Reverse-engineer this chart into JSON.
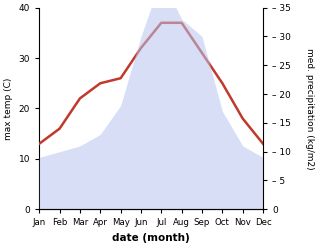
{
  "months": [
    "Jan",
    "Feb",
    "Mar",
    "Apr",
    "May",
    "Jun",
    "Jul",
    "Aug",
    "Sep",
    "Oct",
    "Nov",
    "Dec"
  ],
  "temperature": [
    13,
    16,
    22,
    25,
    26,
    32,
    37,
    37,
    31,
    25,
    18,
    13
  ],
  "precipitation": [
    9,
    10,
    11,
    13,
    18,
    30,
    40,
    33,
    30,
    17,
    11,
    9
  ],
  "temp_color": "#c0392b",
  "precip_color_fill": "#b8c4ee",
  "temp_ylim": [
    0,
    40
  ],
  "precip_ylim": [
    0,
    35
  ],
  "temp_yticks": [
    0,
    10,
    20,
    30,
    40
  ],
  "precip_yticks": [
    0,
    5,
    10,
    15,
    20,
    25,
    30,
    35
  ],
  "xlabel": "date (month)",
  "ylabel_left": "max temp (C)",
  "ylabel_right": "med. precipitation (kg/m2)",
  "background_color": "#ffffff"
}
